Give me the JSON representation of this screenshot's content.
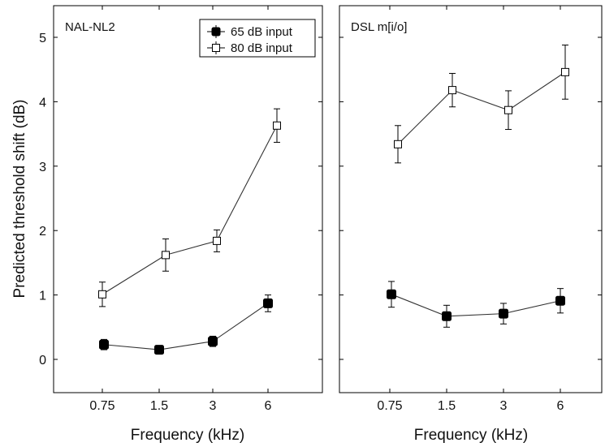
{
  "chart_data": [
    {
      "type": "line",
      "title": "NAL-NL2",
      "xlabel": "Frequency (kHz)",
      "ylabel": "Predicted threshold shift (dB)",
      "categories": [
        "0.75",
        "1.5",
        "3",
        "6"
      ],
      "ylim": [
        -0.5,
        5.5
      ],
      "yticks": [
        "0",
        "1",
        "2",
        "3",
        "4",
        "5"
      ],
      "grid": false,
      "legend": "top-right",
      "legend_entries": [
        "65 dB input",
        "80 dB input"
      ],
      "series": [
        {
          "name": "65 dB input",
          "marker": "filled-square",
          "values": [
            0.23,
            0.15,
            0.28,
            0.87
          ],
          "errors": [
            0.08,
            0.04,
            0.08,
            0.13
          ]
        },
        {
          "name": "80 dB input",
          "marker": "open-square",
          "values": [
            1.01,
            1.62,
            1.84,
            3.63
          ],
          "errors": [
            0.19,
            0.25,
            0.17,
            0.26
          ]
        }
      ]
    },
    {
      "type": "line",
      "title": "DSL m[i/o]",
      "xlabel": "Frequency (kHz)",
      "ylabel": "",
      "categories": [
        "0.75",
        "1.5",
        "3",
        "6"
      ],
      "ylim": [
        -0.5,
        5.5
      ],
      "grid": false,
      "series": [
        {
          "name": "65 dB input",
          "marker": "filled-square",
          "values": [
            1.01,
            0.67,
            0.71,
            0.91
          ],
          "errors": [
            0.2,
            0.17,
            0.16,
            0.19
          ]
        },
        {
          "name": "80 dB input",
          "marker": "open-square",
          "values": [
            3.34,
            4.18,
            3.87,
            4.46
          ],
          "errors": [
            0.29,
            0.26,
            0.3,
            0.42
          ]
        }
      ]
    }
  ]
}
